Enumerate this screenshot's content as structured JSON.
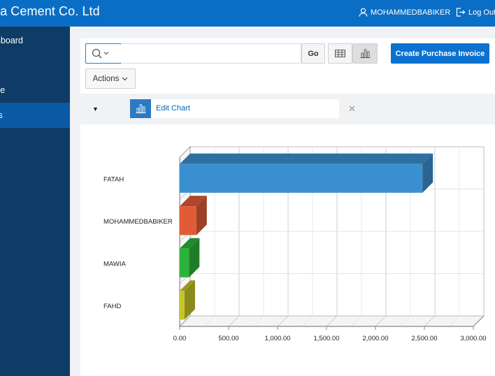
{
  "header": {
    "app_title": "ra Cement Co. Ltd",
    "username": "MOHAMMEDBABIKER",
    "logout_label": "Log Out"
  },
  "sidebar": {
    "items": [
      {
        "label": "nboard",
        "active": false
      },
      {
        "label": "se",
        "active": false
      },
      {
        "label": "ts",
        "active": true
      }
    ]
  },
  "toolbar": {
    "search_value": "",
    "go_label": "Go",
    "create_label": "Create Purchase Invoice",
    "actions_label": "Actions"
  },
  "chart_bar": {
    "edit_chart_label": "Edit Chart"
  },
  "colors": {
    "header_bg": "#0a6ec6",
    "sidebar_bg": "#0e3c66",
    "sidebar_active": "#0a5aa5",
    "primary_button": "#0b72cf"
  },
  "chart_data": {
    "type": "bar",
    "orientation": "horizontal",
    "style": "3d",
    "categories": [
      "FATAH",
      "MOHAMMEDBABIKER",
      "MAWIA",
      "FAHD"
    ],
    "values": [
      2480,
      170,
      95,
      50
    ],
    "colors": [
      "#3a8fd0",
      "#e05b36",
      "#2db33b",
      "#c6c62a"
    ],
    "xlim": [
      0,
      3000
    ],
    "xticks": [
      "0.00",
      "500.00",
      "1,000.00",
      "1,500.00",
      "2,000.00",
      "2,500.00",
      "3,000.00"
    ],
    "grid": true
  }
}
